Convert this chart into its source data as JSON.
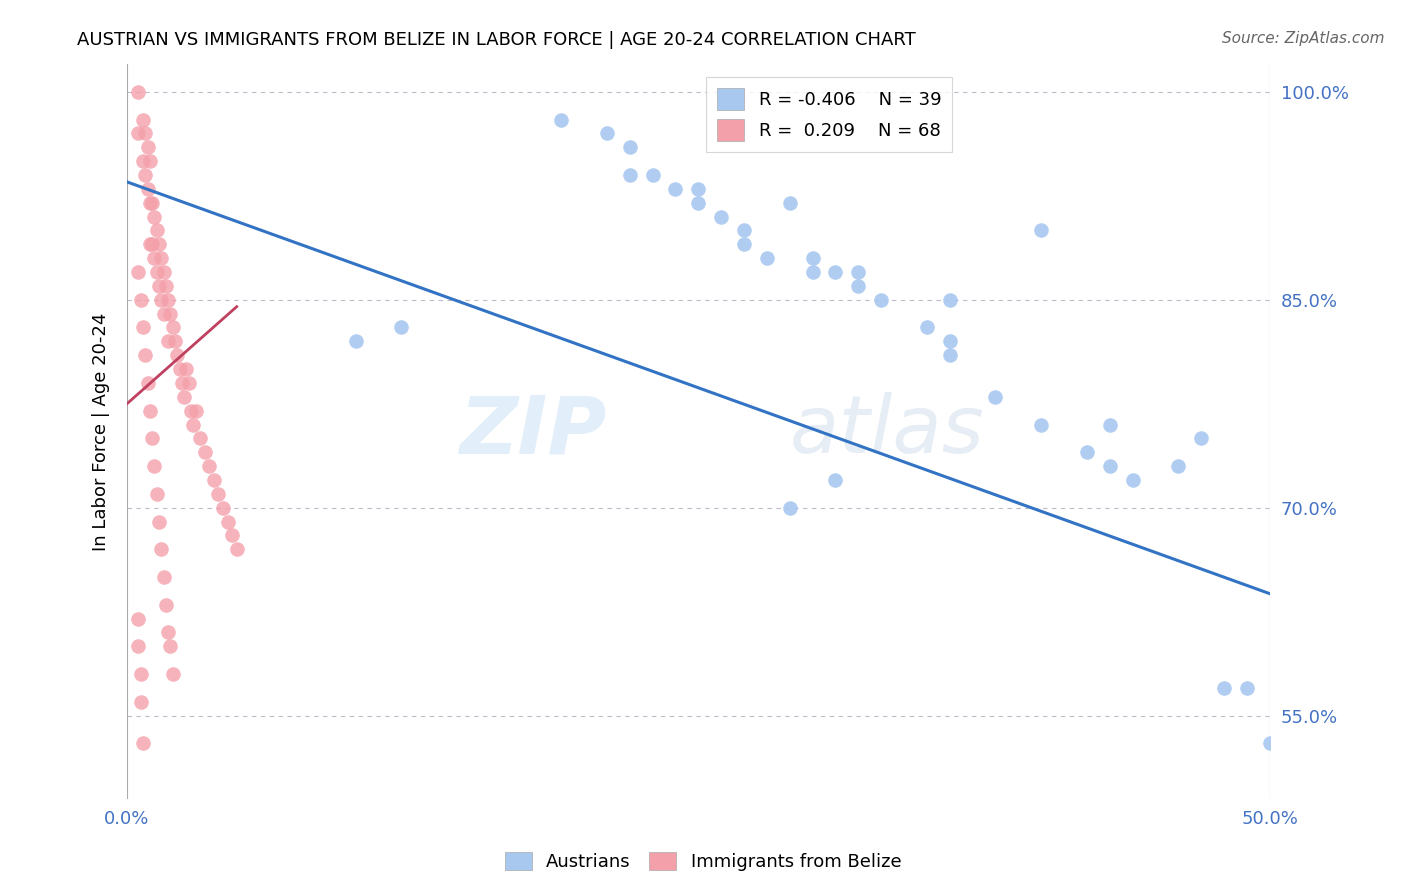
{
  "title": "AUSTRIAN VS IMMIGRANTS FROM BELIZE IN LABOR FORCE | AGE 20-24 CORRELATION CHART",
  "source_text": "Source: ZipAtlas.com",
  "ylabel": "In Labor Force | Age 20-24",
  "xlim": [
    0.0,
    0.5
  ],
  "ylim": [
    0.49,
    1.02
  ],
  "right_yticks": [
    1.0,
    0.85,
    0.7,
    0.55
  ],
  "right_yticklabels": [
    "100.0%",
    "85.0%",
    "70.0%",
    "55.0%"
  ],
  "legend_blue_R": "-0.406",
  "legend_blue_N": "39",
  "legend_pink_R": "0.209",
  "legend_pink_N": "68",
  "blue_color": "#A8C8F0",
  "pink_color": "#F4A0AA",
  "blue_line_color": "#3373C4",
  "pink_line_color": "#C04060",
  "watermark_zip": "ZIP",
  "watermark_atlas": "atlas",
  "blue_scatter_x": [
    0.19,
    0.21,
    0.22,
    0.22,
    0.23,
    0.24,
    0.25,
    0.25,
    0.26,
    0.27,
    0.27,
    0.28,
    0.29,
    0.3,
    0.3,
    0.31,
    0.32,
    0.32,
    0.33,
    0.35,
    0.36,
    0.36,
    0.36,
    0.38,
    0.4,
    0.42,
    0.43,
    0.43,
    0.44,
    0.46,
    0.47,
    0.48,
    0.49,
    0.1,
    0.12,
    0.4,
    0.31,
    0.29,
    0.5
  ],
  "blue_scatter_y": [
    0.98,
    0.97,
    0.96,
    0.94,
    0.94,
    0.93,
    0.93,
    0.92,
    0.91,
    0.9,
    0.89,
    0.88,
    0.92,
    0.88,
    0.87,
    0.87,
    0.86,
    0.87,
    0.85,
    0.83,
    0.82,
    0.81,
    0.85,
    0.78,
    0.76,
    0.74,
    0.73,
    0.76,
    0.72,
    0.73,
    0.75,
    0.57,
    0.57,
    0.82,
    0.83,
    0.9,
    0.72,
    0.7,
    0.53
  ],
  "pink_scatter_x": [
    0.005,
    0.005,
    0.007,
    0.007,
    0.008,
    0.008,
    0.009,
    0.009,
    0.01,
    0.01,
    0.01,
    0.011,
    0.011,
    0.012,
    0.012,
    0.013,
    0.013,
    0.014,
    0.014,
    0.015,
    0.015,
    0.016,
    0.016,
    0.017,
    0.018,
    0.018,
    0.019,
    0.02,
    0.021,
    0.022,
    0.023,
    0.024,
    0.025,
    0.026,
    0.027,
    0.028,
    0.029,
    0.03,
    0.032,
    0.034,
    0.036,
    0.038,
    0.04,
    0.042,
    0.044,
    0.046,
    0.048,
    0.005,
    0.006,
    0.007,
    0.008,
    0.009,
    0.01,
    0.011,
    0.012,
    0.013,
    0.014,
    0.015,
    0.016,
    0.017,
    0.018,
    0.019,
    0.02,
    0.005,
    0.005,
    0.006,
    0.006,
    0.007
  ],
  "pink_scatter_y": [
    1.0,
    0.97,
    0.98,
    0.95,
    0.97,
    0.94,
    0.96,
    0.93,
    0.95,
    0.92,
    0.89,
    0.92,
    0.89,
    0.91,
    0.88,
    0.9,
    0.87,
    0.89,
    0.86,
    0.88,
    0.85,
    0.87,
    0.84,
    0.86,
    0.85,
    0.82,
    0.84,
    0.83,
    0.82,
    0.81,
    0.8,
    0.79,
    0.78,
    0.8,
    0.79,
    0.77,
    0.76,
    0.77,
    0.75,
    0.74,
    0.73,
    0.72,
    0.71,
    0.7,
    0.69,
    0.68,
    0.67,
    0.87,
    0.85,
    0.83,
    0.81,
    0.79,
    0.77,
    0.75,
    0.73,
    0.71,
    0.69,
    0.67,
    0.65,
    0.63,
    0.61,
    0.6,
    0.58,
    0.62,
    0.6,
    0.58,
    0.56,
    0.53
  ],
  "blue_line_x0": 0.0,
  "blue_line_x1": 0.5,
  "blue_line_y0": 0.935,
  "blue_line_y1": 0.638,
  "pink_line_x0": 0.0,
  "pink_line_x1": 0.048,
  "pink_line_y0": 0.775,
  "pink_line_y1": 0.845
}
